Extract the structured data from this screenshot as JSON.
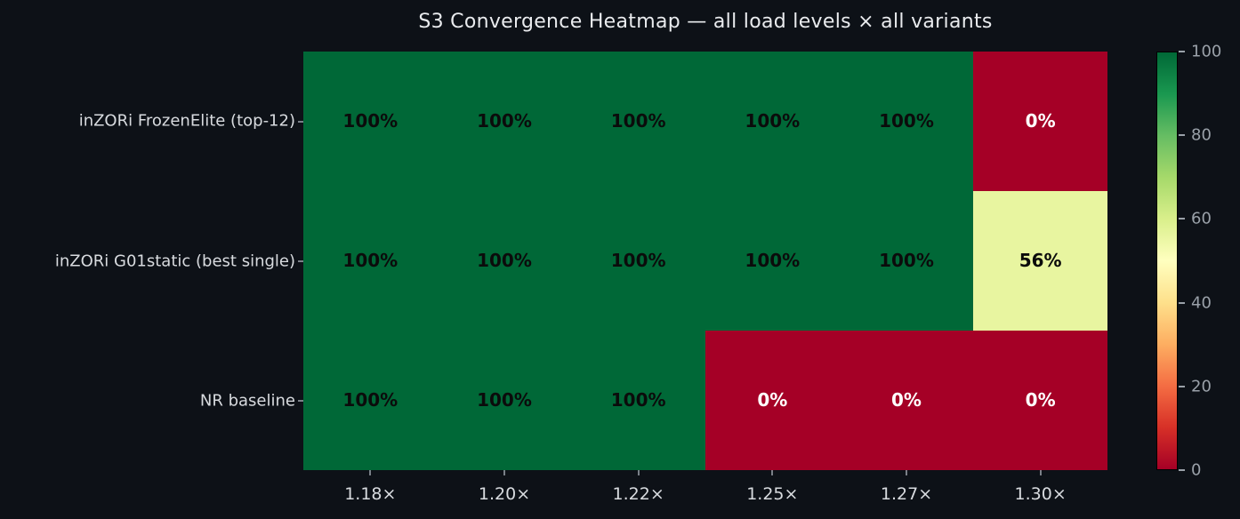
{
  "title": "S3 Convergence Heatmap — all load levels × all variants",
  "chart_data": {
    "type": "heatmap",
    "title": "S3 Convergence Heatmap — all load levels × all variants",
    "x_categories": [
      "1.18×",
      "1.20×",
      "1.22×",
      "1.25×",
      "1.27×",
      "1.30×"
    ],
    "y_categories": [
      "inZORi FrozenElite (top-12)",
      "inZORi G01static (best single)",
      "NR baseline"
    ],
    "values": [
      [
        100,
        100,
        100,
        100,
        100,
        0
      ],
      [
        100,
        100,
        100,
        100,
        100,
        56
      ],
      [
        100,
        100,
        100,
        0,
        0,
        0
      ]
    ],
    "cell_label_suffix": "%",
    "colormap": "RdYlGn",
    "colorbar": {
      "min": 0,
      "max": 100,
      "ticks": [
        0,
        20,
        40,
        60,
        80,
        100
      ],
      "position": "right"
    },
    "grid": false,
    "legend": false
  },
  "colors": {
    "background": "#0d1117",
    "title_text": "#e9ebee",
    "axis_label_text": "#d8dbdf",
    "colorbar_label_text": "#9aa1a9",
    "cell_text_dark": "#0b0b0b",
    "cell_text_light": "#ffffff",
    "colormap_stops": [
      "#a50026",
      "#d73027",
      "#f46d43",
      "#fdae61",
      "#fee08b",
      "#ffffbf",
      "#d9ef8b",
      "#a6d96a",
      "#66bd63",
      "#1a9850",
      "#006837"
    ]
  }
}
